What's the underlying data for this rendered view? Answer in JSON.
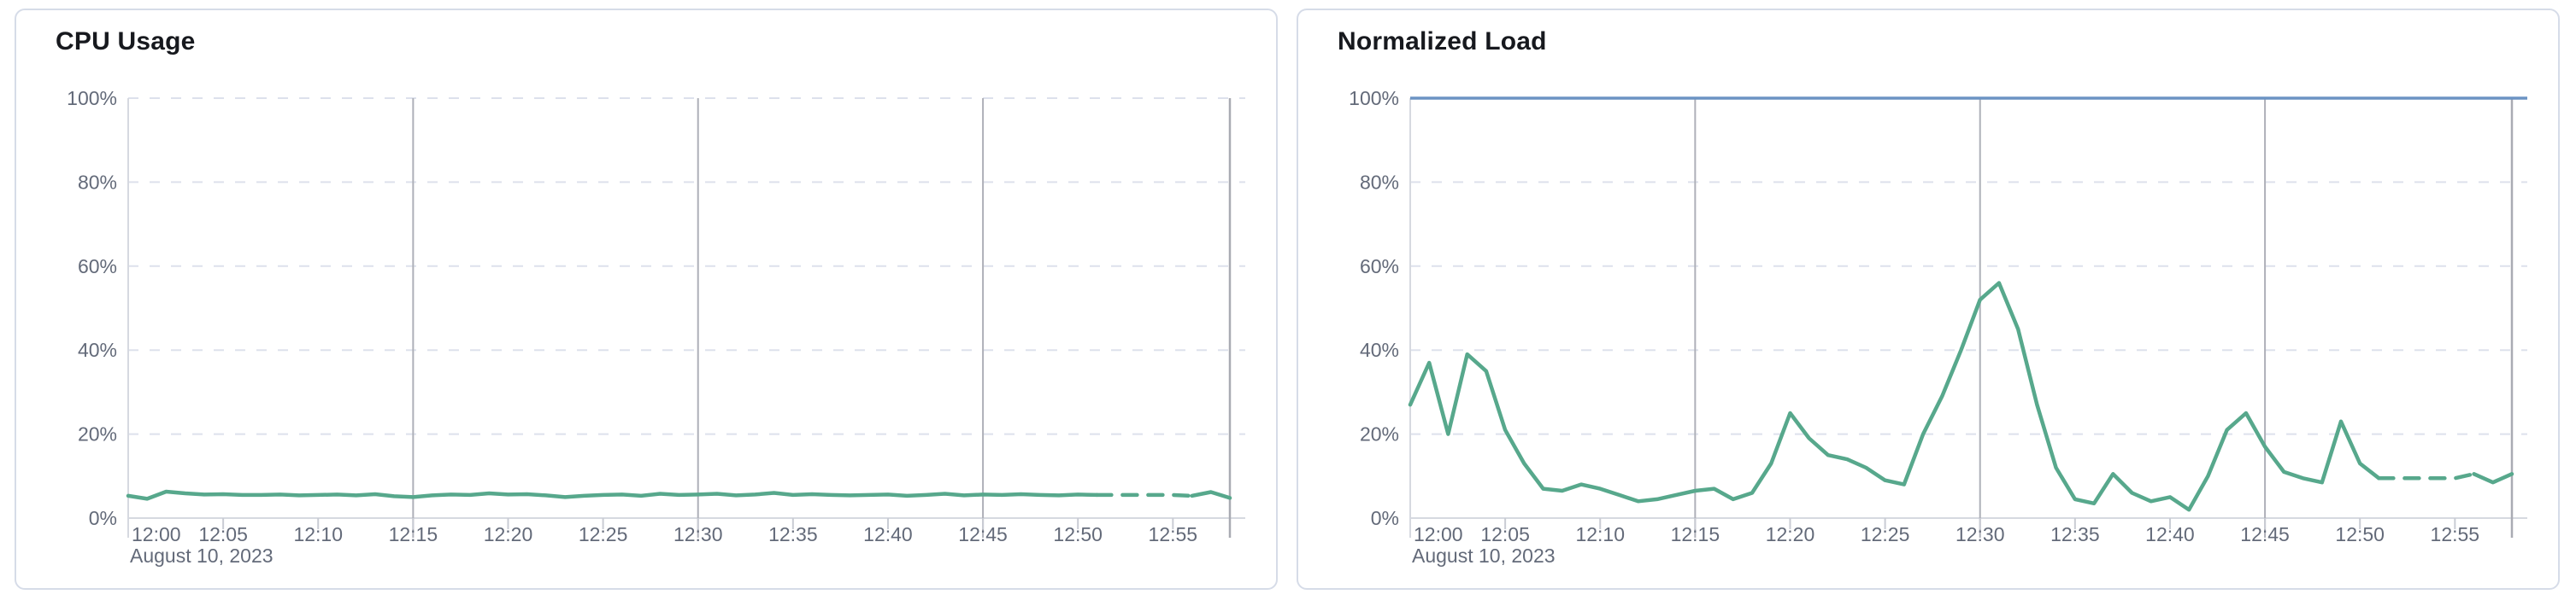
{
  "style": {
    "series_green": "#57a88c",
    "reference_blue": "#6b93c3",
    "grid_horizontal_dashed": "#dde1ec",
    "grid_vertical_major": "#aeb0b8",
    "grid_vertical_end": "#a9abb3",
    "axis_line": "#d6d9e0",
    "tick_mark": "#c9ccd4",
    "label_text": "#636a79",
    "title_text": "#17191e",
    "panel_border": "#d6dce8",
    "panel_background": "#ffffff"
  },
  "chart_data": [
    {
      "type": "line",
      "title": "CPU Usage",
      "xlabel": "",
      "ylabel": "",
      "x_axis": {
        "date_label": "August 10, 2023",
        "start": "12:00",
        "end": "12:59",
        "tick_interval_minutes": 5,
        "tick_labels": [
          "12:00",
          "12:05",
          "12:10",
          "12:15",
          "12:20",
          "12:25",
          "12:30",
          "12:35",
          "12:40",
          "12:45",
          "12:50",
          "12:55"
        ],
        "major_gridline_minutes": [
          15,
          30,
          45
        ]
      },
      "y_axis": {
        "ylim": [
          0,
          100
        ],
        "tick_values": [
          0,
          20,
          40,
          60,
          80,
          100
        ],
        "tick_labels": [
          "0%",
          "20%",
          "40%",
          "60%",
          "80%",
          "100%"
        ]
      },
      "grid": {
        "horizontal": "dashed",
        "vertical": "major-only"
      },
      "legend": "none",
      "series": [
        {
          "name": "CPU Usage",
          "unit": "%",
          "color": "#57a88c",
          "interval_minutes": 1,
          "start_minute": 0,
          "dashed_segment": {
            "from_index": 51,
            "to_index": 56,
            "meaning": "partial/projected data"
          },
          "values": [
            5.3,
            4.6,
            6.3,
            5.9,
            5.6,
            5.7,
            5.5,
            5.5,
            5.6,
            5.4,
            5.5,
            5.6,
            5.4,
            5.7,
            5.2,
            5.0,
            5.4,
            5.6,
            5.5,
            5.9,
            5.6,
            5.7,
            5.4,
            5.0,
            5.3,
            5.5,
            5.6,
            5.3,
            5.8,
            5.5,
            5.6,
            5.8,
            5.4,
            5.6,
            6.0,
            5.5,
            5.7,
            5.5,
            5.4,
            5.5,
            5.6,
            5.3,
            5.5,
            5.8,
            5.4,
            5.6,
            5.5,
            5.7,
            5.5,
            5.4,
            5.6,
            5.5,
            5.5,
            5.5,
            5.5,
            5.5,
            5.3,
            6.2,
            4.8
          ]
        }
      ]
    },
    {
      "type": "line",
      "title": "Normalized Load",
      "xlabel": "",
      "ylabel": "",
      "x_axis": {
        "date_label": "August 10, 2023",
        "start": "12:00",
        "end": "12:59",
        "tick_interval_minutes": 5,
        "tick_labels": [
          "12:00",
          "12:05",
          "12:10",
          "12:15",
          "12:20",
          "12:25",
          "12:30",
          "12:35",
          "12:40",
          "12:45",
          "12:50",
          "12:55"
        ],
        "major_gridline_minutes": [
          15,
          30,
          45
        ]
      },
      "y_axis": {
        "ylim": [
          0,
          100
        ],
        "tick_values": [
          0,
          20,
          40,
          60,
          80,
          100
        ],
        "tick_labels": [
          "0%",
          "20%",
          "40%",
          "60%",
          "80%",
          "100%"
        ]
      },
      "grid": {
        "horizontal": "dashed",
        "vertical": "major-only"
      },
      "legend": "none",
      "reference_line": {
        "value": 100,
        "color": "#6b93c3"
      },
      "series": [
        {
          "name": "Normalized Load",
          "unit": "%",
          "color": "#57a88c",
          "interval_minutes": 1,
          "start_minute": 0,
          "dashed_segment": {
            "from_index": 51,
            "to_index": 56,
            "meaning": "partial/projected data"
          },
          "values": [
            27,
            37,
            20,
            39,
            35,
            21,
            13,
            7,
            6.5,
            8,
            7,
            5.5,
            4,
            4.5,
            5.5,
            6.5,
            7,
            4.5,
            6,
            13,
            25,
            19,
            15,
            14,
            12,
            9,
            8,
            20,
            29,
            40,
            52,
            56,
            45,
            27,
            12,
            4.5,
            3.5,
            10.5,
            6,
            4,
            5,
            2,
            10,
            21,
            25,
            17,
            11,
            9.5,
            8.5,
            23,
            13,
            9.5,
            9.5,
            9.5,
            9.5,
            9.5,
            10.5,
            8.5,
            10.5
          ]
        }
      ]
    }
  ]
}
